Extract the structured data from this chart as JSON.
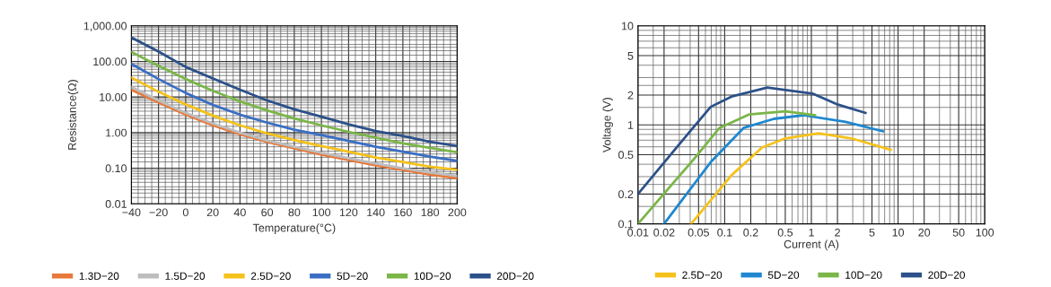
{
  "chart_data": [
    {
      "type": "line",
      "xlabel": "Temperature(°C)",
      "ylabel": "Resistance(Ω)",
      "log": "y",
      "grid": true,
      "legend": "bottom",
      "marker": "none",
      "line_style": "solid",
      "x": [
        -40,
        -20,
        0,
        20,
        40,
        60,
        80,
        100,
        120,
        140,
        160,
        180,
        200
      ],
      "xlim": [
        -40,
        200
      ],
      "xticks": [
        {
          "value": -40,
          "label": "−40"
        },
        {
          "value": -20,
          "label": "−20"
        },
        0,
        20,
        40,
        60,
        80,
        100,
        120,
        140,
        160,
        180,
        200
      ],
      "ylim": [
        0.01,
        1000
      ],
      "yticks": [
        {
          "value": 0.01,
          "label": "0.01"
        },
        {
          "value": 0.1,
          "label": "0.10"
        },
        {
          "value": 1,
          "label": "1.00"
        },
        {
          "value": 10,
          "label": "10.00"
        },
        {
          "value": 100,
          "label": "100.00"
        },
        {
          "value": 1000,
          "label": "1,000.00"
        }
      ],
      "series": [
        {
          "name": "1.3D−20",
          "color": "#e8793a",
          "values": [
            16,
            7,
            3.2,
            1.6,
            0.9,
            0.55,
            0.36,
            0.24,
            0.17,
            0.12,
            0.09,
            0.066,
            0.052
          ]
        },
        {
          "name": "1.5D−20",
          "color": "#bdbdbd",
          "values": [
            19,
            8,
            3.6,
            1.8,
            1.0,
            0.6,
            0.4,
            0.27,
            0.19,
            0.135,
            0.1,
            0.075,
            0.06
          ]
        },
        {
          "name": "2.5D−20",
          "color": "#f5c21b",
          "values": [
            35,
            14,
            6.2,
            3,
            1.6,
            0.95,
            0.62,
            0.42,
            0.29,
            0.2,
            0.15,
            0.11,
            0.09
          ]
        },
        {
          "name": "5D−20",
          "color": "#3a6fc4",
          "values": [
            85,
            32,
            13,
            6,
            3.2,
            1.9,
            1.2,
            0.85,
            0.58,
            0.4,
            0.29,
            0.21,
            0.16
          ]
        },
        {
          "name": "10D−20",
          "color": "#7ab648",
          "values": [
            185,
            75,
            32,
            15,
            7.5,
            4.2,
            2.5,
            1.6,
            1.05,
            0.72,
            0.5,
            0.37,
            0.28
          ]
        },
        {
          "name": "20D−20",
          "color": "#2c5189",
          "values": [
            470,
            190,
            70,
            33,
            16,
            8,
            4.5,
            2.8,
            1.7,
            1.1,
            0.8,
            0.55,
            0.42
          ]
        }
      ]
    },
    {
      "type": "line",
      "xlabel": "Current (A)",
      "ylabel": "Voltage (V)",
      "log": "xy",
      "grid": true,
      "legend": "bottom",
      "marker": "none",
      "line_style": "solid",
      "xlim": [
        0.01,
        100
      ],
      "xticks": [
        0.01,
        0.02,
        0.05,
        0.1,
        0.2,
        0.5,
        1,
        2,
        5,
        10,
        20,
        50,
        100
      ],
      "ylim": [
        0.1,
        10
      ],
      "yticks": [
        0.1,
        0.2,
        0.5,
        1,
        2,
        5,
        10
      ],
      "series": [
        {
          "name": "2.5D−20",
          "color": "#f5c21b",
          "x": [
            0.041,
            0.12,
            0.27,
            0.5,
            1.21,
            2.9,
            8.2
          ],
          "values": [
            0.1,
            0.31,
            0.59,
            0.73,
            0.82,
            0.73,
            0.56
          ]
        },
        {
          "name": "5D−20",
          "color": "#1f88d0",
          "x": [
            0.02,
            0.069,
            0.165,
            0.37,
            0.81,
            2.48,
            6.7
          ],
          "values": [
            0.1,
            0.42,
            0.93,
            1.15,
            1.25,
            1.07,
            0.86
          ]
        },
        {
          "name": "10D−20",
          "color": "#7ab648",
          "x": [
            0.01,
            0.046,
            0.087,
            0.19,
            0.5,
            1.1
          ],
          "values": [
            0.1,
            0.47,
            0.93,
            1.27,
            1.37,
            1.25
          ]
        },
        {
          "name": "20D−20",
          "color": "#2c5189",
          "x": [
            0.01,
            0.031,
            0.069,
            0.12,
            0.31,
            1.03,
            1.95,
            4.2
          ],
          "values": [
            0.2,
            0.66,
            1.52,
            1.93,
            2.38,
            2.07,
            1.62,
            1.32
          ]
        }
      ]
    }
  ]
}
